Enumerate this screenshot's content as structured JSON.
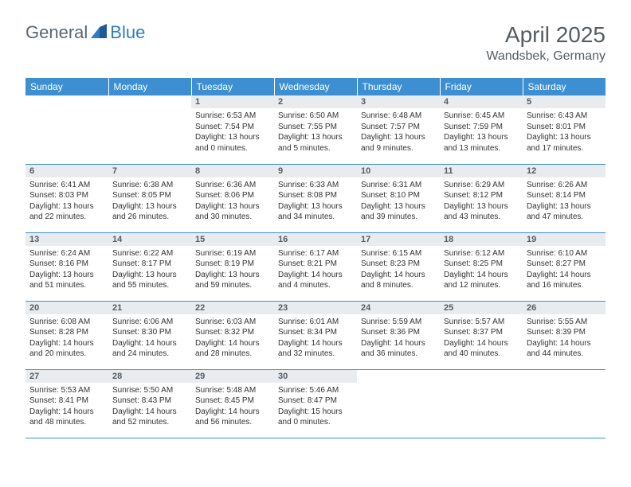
{
  "brand": {
    "part1": "General",
    "part2": "Blue"
  },
  "title": "April 2025",
  "location": "Wandsbek, Germany",
  "colors": {
    "header_bg": "#3d8fd1",
    "header_fg": "#ffffff",
    "day_header_bg": "#e9ecef",
    "text": "#555c62",
    "logo_gray": "#5a6670",
    "logo_blue": "#2f7bc4",
    "row_border": "#3d8fd1"
  },
  "weekdays": [
    "Sunday",
    "Monday",
    "Tuesday",
    "Wednesday",
    "Thursday",
    "Friday",
    "Saturday"
  ],
  "weeks": [
    [
      null,
      null,
      {
        "d": "1",
        "sr": "6:53 AM",
        "ss": "7:54 PM",
        "dl": "13 hours and 0 minutes."
      },
      {
        "d": "2",
        "sr": "6:50 AM",
        "ss": "7:55 PM",
        "dl": "13 hours and 5 minutes."
      },
      {
        "d": "3",
        "sr": "6:48 AM",
        "ss": "7:57 PM",
        "dl": "13 hours and 9 minutes."
      },
      {
        "d": "4",
        "sr": "6:45 AM",
        "ss": "7:59 PM",
        "dl": "13 hours and 13 minutes."
      },
      {
        "d": "5",
        "sr": "6:43 AM",
        "ss": "8:01 PM",
        "dl": "13 hours and 17 minutes."
      }
    ],
    [
      {
        "d": "6",
        "sr": "6:41 AM",
        "ss": "8:03 PM",
        "dl": "13 hours and 22 minutes."
      },
      {
        "d": "7",
        "sr": "6:38 AM",
        "ss": "8:05 PM",
        "dl": "13 hours and 26 minutes."
      },
      {
        "d": "8",
        "sr": "6:36 AM",
        "ss": "8:06 PM",
        "dl": "13 hours and 30 minutes."
      },
      {
        "d": "9",
        "sr": "6:33 AM",
        "ss": "8:08 PM",
        "dl": "13 hours and 34 minutes."
      },
      {
        "d": "10",
        "sr": "6:31 AM",
        "ss": "8:10 PM",
        "dl": "13 hours and 39 minutes."
      },
      {
        "d": "11",
        "sr": "6:29 AM",
        "ss": "8:12 PM",
        "dl": "13 hours and 43 minutes."
      },
      {
        "d": "12",
        "sr": "6:26 AM",
        "ss": "8:14 PM",
        "dl": "13 hours and 47 minutes."
      }
    ],
    [
      {
        "d": "13",
        "sr": "6:24 AM",
        "ss": "8:16 PM",
        "dl": "13 hours and 51 minutes."
      },
      {
        "d": "14",
        "sr": "6:22 AM",
        "ss": "8:17 PM",
        "dl": "13 hours and 55 minutes."
      },
      {
        "d": "15",
        "sr": "6:19 AM",
        "ss": "8:19 PM",
        "dl": "13 hours and 59 minutes."
      },
      {
        "d": "16",
        "sr": "6:17 AM",
        "ss": "8:21 PM",
        "dl": "14 hours and 4 minutes."
      },
      {
        "d": "17",
        "sr": "6:15 AM",
        "ss": "8:23 PM",
        "dl": "14 hours and 8 minutes."
      },
      {
        "d": "18",
        "sr": "6:12 AM",
        "ss": "8:25 PM",
        "dl": "14 hours and 12 minutes."
      },
      {
        "d": "19",
        "sr": "6:10 AM",
        "ss": "8:27 PM",
        "dl": "14 hours and 16 minutes."
      }
    ],
    [
      {
        "d": "20",
        "sr": "6:08 AM",
        "ss": "8:28 PM",
        "dl": "14 hours and 20 minutes."
      },
      {
        "d": "21",
        "sr": "6:06 AM",
        "ss": "8:30 PM",
        "dl": "14 hours and 24 minutes."
      },
      {
        "d": "22",
        "sr": "6:03 AM",
        "ss": "8:32 PM",
        "dl": "14 hours and 28 minutes."
      },
      {
        "d": "23",
        "sr": "6:01 AM",
        "ss": "8:34 PM",
        "dl": "14 hours and 32 minutes."
      },
      {
        "d": "24",
        "sr": "5:59 AM",
        "ss": "8:36 PM",
        "dl": "14 hours and 36 minutes."
      },
      {
        "d": "25",
        "sr": "5:57 AM",
        "ss": "8:37 PM",
        "dl": "14 hours and 40 minutes."
      },
      {
        "d": "26",
        "sr": "5:55 AM",
        "ss": "8:39 PM",
        "dl": "14 hours and 44 minutes."
      }
    ],
    [
      {
        "d": "27",
        "sr": "5:53 AM",
        "ss": "8:41 PM",
        "dl": "14 hours and 48 minutes."
      },
      {
        "d": "28",
        "sr": "5:50 AM",
        "ss": "8:43 PM",
        "dl": "14 hours and 52 minutes."
      },
      {
        "d": "29",
        "sr": "5:48 AM",
        "ss": "8:45 PM",
        "dl": "14 hours and 56 minutes."
      },
      {
        "d": "30",
        "sr": "5:46 AM",
        "ss": "8:47 PM",
        "dl": "15 hours and 0 minutes."
      },
      null,
      null,
      null
    ]
  ],
  "labels": {
    "sunrise": "Sunrise:",
    "sunset": "Sunset:",
    "daylight": "Daylight:"
  }
}
